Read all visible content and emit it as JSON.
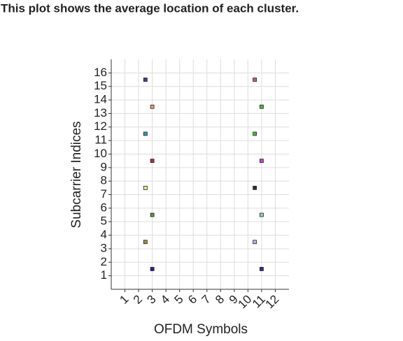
{
  "chart_data": {
    "type": "scatter",
    "title": "This plot shows the average location of each cluster.",
    "x_label": "OFDM Symbols",
    "y_label": "Subcarrier Indices",
    "x": [
      2.5,
      3,
      2.5,
      3,
      2.5,
      3,
      2.5,
      3,
      10.5,
      11,
      10.5,
      11,
      10.5,
      11,
      10.5,
      11
    ],
    "values": [
      15.5,
      13.5,
      11.5,
      9.5,
      7.5,
      5.5,
      3.5,
      1.5,
      15.5,
      13.5,
      11.5,
      9.5,
      7.5,
      5.5,
      3.5,
      1.5
    ],
    "colors": [
      "#4a3a9a",
      "#e8a060",
      "#3a9ab0",
      "#b03040",
      "#e8e890",
      "#5a9a30",
      "#a09040",
      "#2020a0",
      "#c06080",
      "#40c040",
      "#50b040",
      "#d040d0",
      "#303030",
      "#90d0c0",
      "#c0b0e0",
      "#303080"
    ],
    "xlim": [
      0,
      13
    ],
    "xticks": [
      1,
      2,
      3,
      4,
      5,
      6,
      7,
      8,
      9,
      10,
      11,
      12
    ],
    "ylim": [
      0,
      17
    ],
    "yticks": [
      1,
      2,
      3,
      4,
      5,
      6,
      7,
      8,
      9,
      10,
      11,
      12,
      13,
      14,
      15,
      16
    ],
    "grid": true
  }
}
